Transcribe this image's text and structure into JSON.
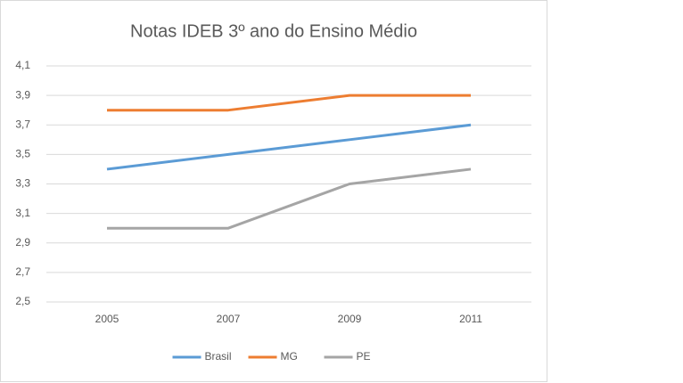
{
  "chart_data": {
    "type": "line",
    "title": "Notas IDEB 3º ano do Ensino Médio",
    "categories": [
      "2005",
      "2007",
      "2009",
      "2011"
    ],
    "series": [
      {
        "name": "Brasil",
        "color": "#5b9bd5",
        "values": [
          3.4,
          3.5,
          3.6,
          3.7
        ]
      },
      {
        "name": "MG",
        "color": "#ed7d31",
        "values": [
          3.8,
          3.8,
          3.9,
          3.9
        ]
      },
      {
        "name": "PE",
        "color": "#a5a5a5",
        "values": [
          3.0,
          3.0,
          3.3,
          3.4
        ]
      }
    ],
    "ylim": [
      2.5,
      4.1
    ],
    "yticks": [
      {
        "value": 2.5,
        "label": "2,5"
      },
      {
        "value": 2.7,
        "label": "2,7"
      },
      {
        "value": 2.9,
        "label": "2,9"
      },
      {
        "value": 3.1,
        "label": "3,1"
      },
      {
        "value": 3.3,
        "label": "3,3"
      },
      {
        "value": 3.5,
        "label": "3,5"
      },
      {
        "value": 3.7,
        "label": "3,7"
      },
      {
        "value": 3.9,
        "label": "3,9"
      },
      {
        "value": 4.1,
        "label": "4,1"
      }
    ],
    "grid": true,
    "legend": "bottom"
  }
}
